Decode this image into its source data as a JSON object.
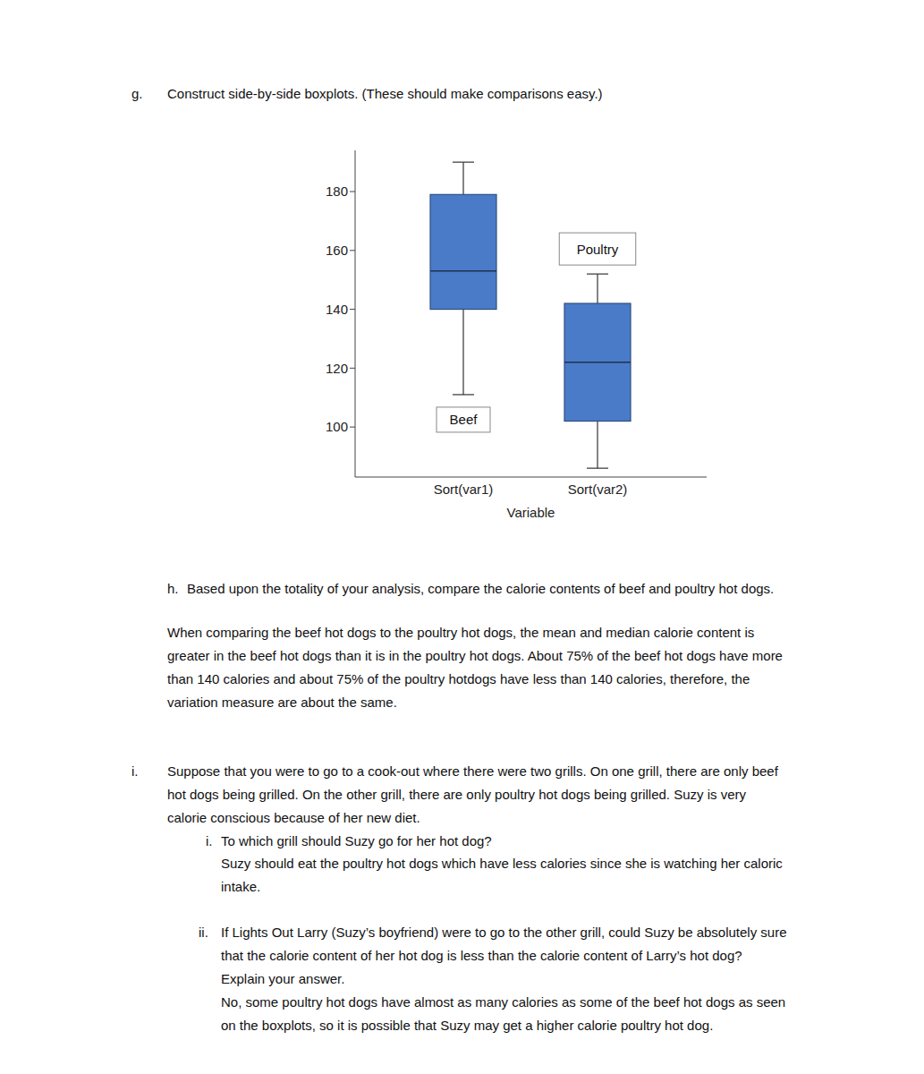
{
  "section_g": {
    "label": "g.",
    "text": "Construct side-by-side boxplots. (These should make comparisons easy.)"
  },
  "chart_data": {
    "type": "boxplot",
    "categories": [
      "Sort(var1)",
      "Sort(var2)"
    ],
    "x_label": "Variable",
    "series": [
      {
        "name": "Beef",
        "color": "#4a7bc8",
        "min": 111,
        "q1": 140,
        "median": 153,
        "q3": 179,
        "max": 190
      },
      {
        "name": "Poultry",
        "color": "#4a7bc8",
        "min": 86,
        "q1": 102,
        "median": 122,
        "q3": 142,
        "max": 152
      }
    ],
    "ylim": [
      83,
      194
    ],
    "yticks": [
      100,
      120,
      140,
      160,
      180
    ]
  },
  "section_h": {
    "label": "h.",
    "text": "Based upon the totality of your analysis, compare the calorie contents of beef and poultry hot dogs.",
    "answer": [
      "When comparing the beef hot dogs to the poultry hot dogs, the mean and median calorie content is",
      "greater in the beef hot dogs than it is in the poultry hot dogs. About 75% of the beef hot dogs have more",
      "than 140 calories and about 75% of the poultry hotdogs have less than 140 calories, therefore, the",
      "variation measure are about the same."
    ]
  },
  "section_i": {
    "label": "i.",
    "lines": [
      "Suppose that you were to go to a cook-out where there were two grills. On one grill, there are only beef",
      "hot dogs being grilled. On the other grill, there are only poultry hot dogs being grilled. Suzy is very",
      "calorie conscious because of her new diet."
    ],
    "parts": [
      {
        "label": "i.",
        "question": [
          "To which grill should Suzy go for her hot dog?"
        ],
        "answer": [
          "Suzy should eat the poultry hot dogs which have less calories since she is watching her caloric",
          "intake."
        ]
      },
      {
        "label": "ii.",
        "question": [
          "If Lights Out Larry (Suzy’s boyfriend) were to go to the other grill, could Suzy be absolutely sure",
          "that the calorie content of her hot dog is less than the calorie content of Larry’s hot dog?",
          "Explain your answer."
        ],
        "answer": [
          "No, some poultry hot dogs have almost as many calories as some of the beef hot dogs as seen",
          "on the boxplots, so it is possible that Suzy may get a higher calorie poultry hot dog."
        ]
      }
    ]
  }
}
